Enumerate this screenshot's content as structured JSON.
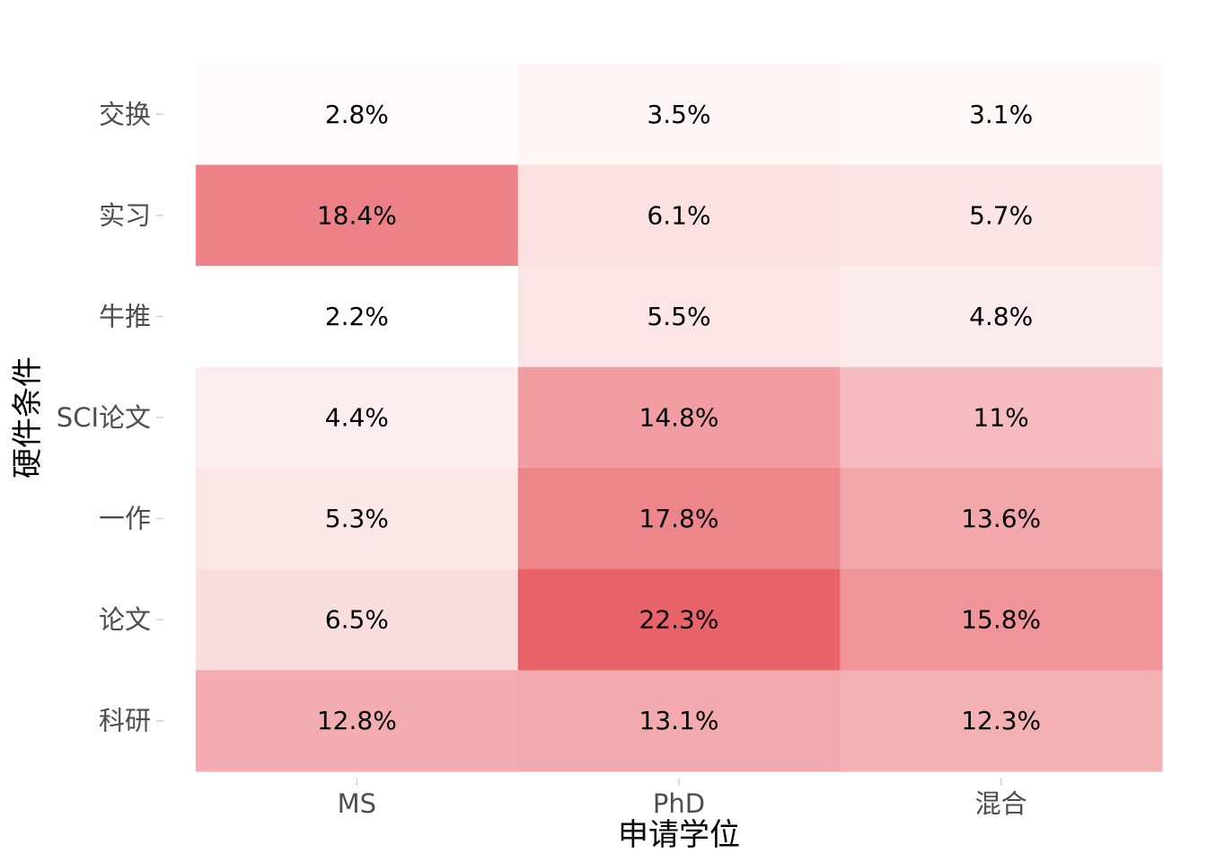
{
  "chart_data": {
    "type": "heatmap",
    "title": "",
    "xlabel": "申请学位",
    "ylabel": "硬件条件",
    "x_categories": [
      "MS",
      "PhD",
      "混合"
    ],
    "y_categories": [
      "交换",
      "实习",
      "牛推",
      "SCI论文",
      "一作",
      "论文",
      "科研"
    ],
    "values": [
      [
        2.8,
        3.5,
        3.1
      ],
      [
        18.4,
        6.1,
        5.7
      ],
      [
        2.2,
        5.5,
        4.8
      ],
      [
        4.4,
        14.8,
        11
      ],
      [
        5.3,
        17.8,
        13.6
      ],
      [
        6.5,
        22.3,
        15.8
      ],
      [
        12.8,
        13.1,
        12.3
      ]
    ],
    "labels": [
      [
        "2.8%",
        "3.5%",
        "3.1%"
      ],
      [
        "18.4%",
        "6.1%",
        "5.7%"
      ],
      [
        "2.2%",
        "5.5%",
        "4.8%"
      ],
      [
        "4.4%",
        "14.8%",
        "11%"
      ],
      [
        "5.3%",
        "17.8%",
        "13.6%"
      ],
      [
        "6.5%",
        "22.3%",
        "15.8%"
      ],
      [
        "12.8%",
        "13.1%",
        "12.3%"
      ]
    ],
    "color_low": "#ffffff",
    "color_high": "#e8636a",
    "grid": false,
    "legend": "none"
  }
}
